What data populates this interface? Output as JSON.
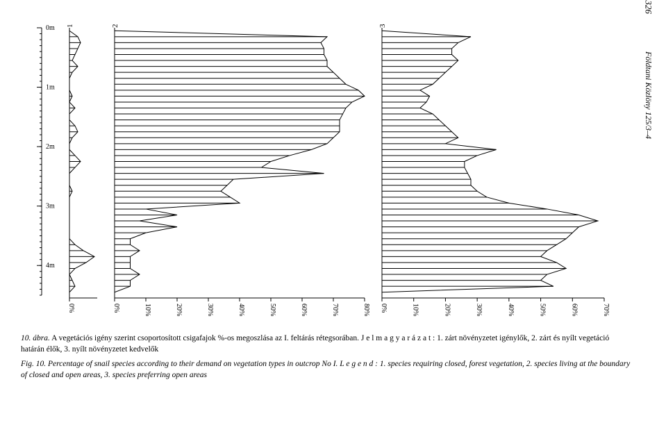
{
  "page_number": "326",
  "journal": "Földtani Közlöny 125/3–4",
  "caption_hu_lead": "10. ábra.",
  "caption_hu_body": " A vegetációs igény szerint csoportosított csigafajok %-os megoszlása az I. feltárás rétegsorában. J e l m a g y a r á z a t : 1. zárt növényzetet igénylők, 2. zárt és nyílt vegetáció határán élők, 3. nyílt növényzetet kedvelők",
  "caption_en_lead": "Fig. 10.",
  "caption_en_body": " Percentage of snail species according to their demand on vegetation types in outcrop No I. L e g e n d : 1. species requiring closed, forest vegetation, 2. species living at the boundary of closed and open areas, 3. species preferring open areas",
  "chart": {
    "type": "horizontal-profile-bars",
    "background_color": "#ffffff",
    "line_color": "#000000",
    "line_width": 1,
    "depth_axis": {
      "min": 0,
      "max": 4.5,
      "ticks_major": [
        0,
        1,
        2,
        3,
        4
      ],
      "tick_labels": [
        "0m",
        "1m",
        "2m",
        "3m",
        "4m"
      ],
      "minor_step": 0.1
    },
    "x_axis_common": {
      "tick_step_percent": 10,
      "tick_label_fontsize": 9,
      "tick_label_rotation_deg": 90
    },
    "panels": [
      {
        "id": "1",
        "xmax_percent": 10,
        "tick_values": [
          0
        ],
        "values": [
          {
            "d": 0.05,
            "v": 0
          },
          {
            "d": 0.15,
            "v": 3
          },
          {
            "d": 0.25,
            "v": 4
          },
          {
            "d": 0.35,
            "v": 3
          },
          {
            "d": 0.45,
            "v": 2
          },
          {
            "d": 0.55,
            "v": 1
          },
          {
            "d": 0.65,
            "v": 3
          },
          {
            "d": 0.75,
            "v": 1
          },
          {
            "d": 0.85,
            "v": 0
          },
          {
            "d": 0.95,
            "v": 0
          },
          {
            "d": 1.05,
            "v": 0
          },
          {
            "d": 1.15,
            "v": 1
          },
          {
            "d": 1.25,
            "v": 0
          },
          {
            "d": 1.35,
            "v": 2
          },
          {
            "d": 1.45,
            "v": 0
          },
          {
            "d": 1.55,
            "v": 0
          },
          {
            "d": 1.65,
            "v": 2
          },
          {
            "d": 1.75,
            "v": 3
          },
          {
            "d": 1.85,
            "v": 1
          },
          {
            "d": 1.95,
            "v": 0
          },
          {
            "d": 2.05,
            "v": 0
          },
          {
            "d": 2.15,
            "v": 2
          },
          {
            "d": 2.25,
            "v": 4
          },
          {
            "d": 2.35,
            "v": 2
          },
          {
            "d": 2.45,
            "v": 0
          },
          {
            "d": 2.55,
            "v": 0
          },
          {
            "d": 2.65,
            "v": 0
          },
          {
            "d": 2.75,
            "v": 1
          },
          {
            "d": 2.85,
            "v": 0
          },
          {
            "d": 2.95,
            "v": 0
          },
          {
            "d": 3.05,
            "v": 0
          },
          {
            "d": 3.15,
            "v": 0
          },
          {
            "d": 3.25,
            "v": 0
          },
          {
            "d": 3.35,
            "v": 0
          },
          {
            "d": 3.45,
            "v": 0
          },
          {
            "d": 3.55,
            "v": 0
          },
          {
            "d": 3.65,
            "v": 2
          },
          {
            "d": 3.75,
            "v": 5
          },
          {
            "d": 3.85,
            "v": 9
          },
          {
            "d": 3.95,
            "v": 6
          },
          {
            "d": 4.05,
            "v": 2
          },
          {
            "d": 4.15,
            "v": 0
          },
          {
            "d": 4.25,
            "v": 1
          },
          {
            "d": 4.35,
            "v": 2
          },
          {
            "d": 4.45,
            "v": 0
          }
        ]
      },
      {
        "id": "2",
        "xmax_percent": 80,
        "tick_values": [
          0,
          10,
          20,
          30,
          40,
          50,
          60,
          70,
          80
        ],
        "values": [
          {
            "d": 0.05,
            "v": 0
          },
          {
            "d": 0.15,
            "v": 68
          },
          {
            "d": 0.25,
            "v": 66
          },
          {
            "d": 0.35,
            "v": 67
          },
          {
            "d": 0.45,
            "v": 67
          },
          {
            "d": 0.55,
            "v": 68
          },
          {
            "d": 0.65,
            "v": 68
          },
          {
            "d": 0.75,
            "v": 70
          },
          {
            "d": 0.85,
            "v": 72
          },
          {
            "d": 0.95,
            "v": 74
          },
          {
            "d": 1.05,
            "v": 78
          },
          {
            "d": 1.15,
            "v": 80
          },
          {
            "d": 1.25,
            "v": 76
          },
          {
            "d": 1.35,
            "v": 74
          },
          {
            "d": 1.45,
            "v": 73
          },
          {
            "d": 1.55,
            "v": 72
          },
          {
            "d": 1.65,
            "v": 72
          },
          {
            "d": 1.75,
            "v": 72
          },
          {
            "d": 1.85,
            "v": 70
          },
          {
            "d": 1.95,
            "v": 68
          },
          {
            "d": 2.05,
            "v": 63
          },
          {
            "d": 2.15,
            "v": 56
          },
          {
            "d": 2.25,
            "v": 50
          },
          {
            "d": 2.35,
            "v": 47
          },
          {
            "d": 2.45,
            "v": 67
          },
          {
            "d": 2.55,
            "v": 38
          },
          {
            "d": 2.65,
            "v": 36
          },
          {
            "d": 2.75,
            "v": 34
          },
          {
            "d": 2.85,
            "v": 37
          },
          {
            "d": 2.95,
            "v": 40
          },
          {
            "d": 3.05,
            "v": 10
          },
          {
            "d": 3.15,
            "v": 20
          },
          {
            "d": 3.25,
            "v": 8
          },
          {
            "d": 3.35,
            "v": 20
          },
          {
            "d": 3.45,
            "v": 10
          },
          {
            "d": 3.55,
            "v": 5
          },
          {
            "d": 3.65,
            "v": 5
          },
          {
            "d": 3.75,
            "v": 8
          },
          {
            "d": 3.85,
            "v": 5
          },
          {
            "d": 3.95,
            "v": 5
          },
          {
            "d": 4.05,
            "v": 5
          },
          {
            "d": 4.15,
            "v": 8
          },
          {
            "d": 4.25,
            "v": 5
          },
          {
            "d": 4.35,
            "v": 5
          },
          {
            "d": 4.45,
            "v": 0
          }
        ]
      },
      {
        "id": "3",
        "xmax_percent": 70,
        "tick_values": [
          0,
          10,
          20,
          30,
          40,
          50,
          60,
          70
        ],
        "values": [
          {
            "d": 0.05,
            "v": 0
          },
          {
            "d": 0.15,
            "v": 28
          },
          {
            "d": 0.25,
            "v": 24
          },
          {
            "d": 0.35,
            "v": 22
          },
          {
            "d": 0.45,
            "v": 22
          },
          {
            "d": 0.55,
            "v": 24
          },
          {
            "d": 0.65,
            "v": 22
          },
          {
            "d": 0.75,
            "v": 20
          },
          {
            "d": 0.85,
            "v": 18
          },
          {
            "d": 0.95,
            "v": 16
          },
          {
            "d": 1.05,
            "v": 12
          },
          {
            "d": 1.15,
            "v": 15
          },
          {
            "d": 1.25,
            "v": 14
          },
          {
            "d": 1.35,
            "v": 12
          },
          {
            "d": 1.45,
            "v": 16
          },
          {
            "d": 1.55,
            "v": 18
          },
          {
            "d": 1.65,
            "v": 20
          },
          {
            "d": 1.75,
            "v": 22
          },
          {
            "d": 1.85,
            "v": 24
          },
          {
            "d": 1.95,
            "v": 20
          },
          {
            "d": 2.05,
            "v": 36
          },
          {
            "d": 2.15,
            "v": 30
          },
          {
            "d": 2.25,
            "v": 26
          },
          {
            "d": 2.35,
            "v": 26
          },
          {
            "d": 2.45,
            "v": 27
          },
          {
            "d": 2.55,
            "v": 28
          },
          {
            "d": 2.65,
            "v": 28
          },
          {
            "d": 2.75,
            "v": 30
          },
          {
            "d": 2.85,
            "v": 33
          },
          {
            "d": 2.95,
            "v": 40
          },
          {
            "d": 3.05,
            "v": 52
          },
          {
            "d": 3.15,
            "v": 62
          },
          {
            "d": 3.25,
            "v": 68
          },
          {
            "d": 3.35,
            "v": 62
          },
          {
            "d": 3.45,
            "v": 60
          },
          {
            "d": 3.55,
            "v": 58
          },
          {
            "d": 3.65,
            "v": 55
          },
          {
            "d": 3.75,
            "v": 52
          },
          {
            "d": 3.85,
            "v": 50
          },
          {
            "d": 3.95,
            "v": 55
          },
          {
            "d": 4.05,
            "v": 58
          },
          {
            "d": 4.15,
            "v": 52
          },
          {
            "d": 4.25,
            "v": 50
          },
          {
            "d": 4.35,
            "v": 54
          },
          {
            "d": 4.45,
            "v": 0
          }
        ]
      }
    ]
  }
}
